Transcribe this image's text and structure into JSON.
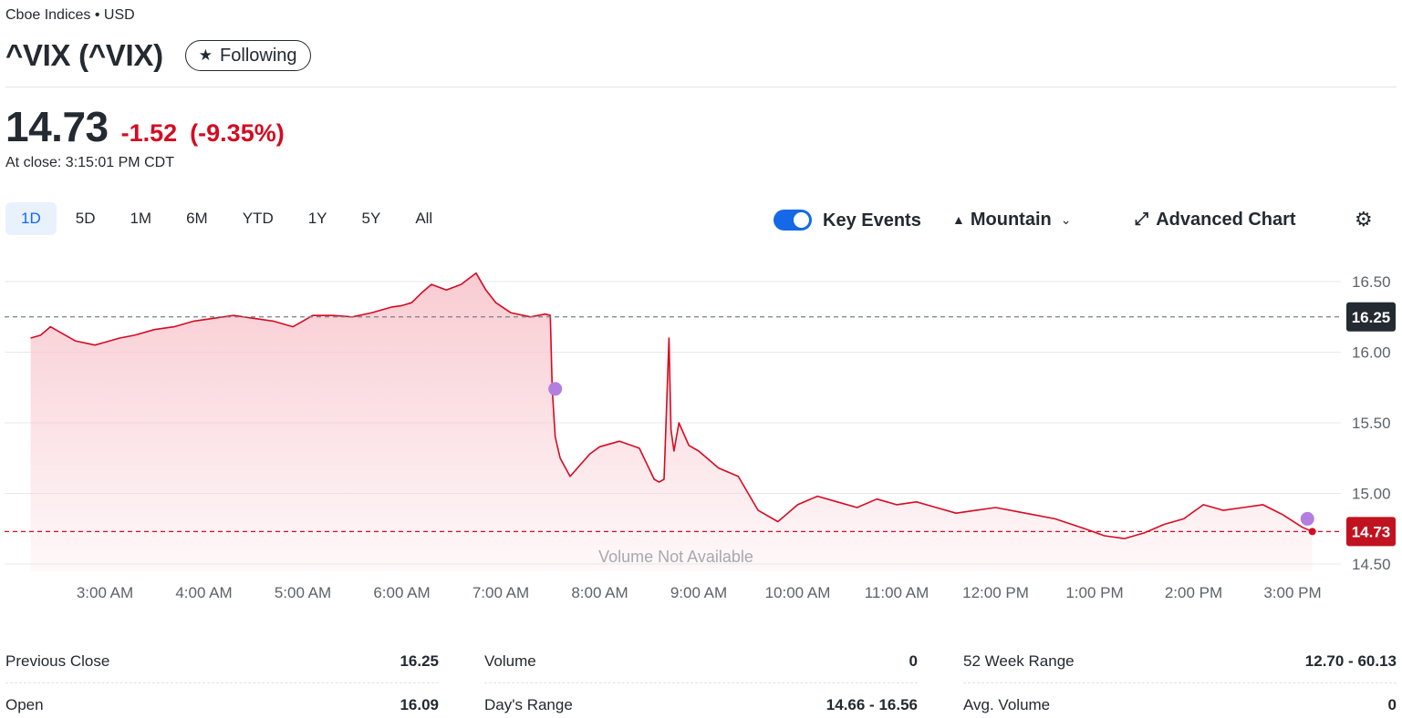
{
  "header": {
    "exchange": "Cboe Indices • USD",
    "title": "^VIX (^VIX)",
    "follow_label": "Following"
  },
  "quote": {
    "price": "14.73",
    "change": "-1.52",
    "change_pct": "(-9.35%)",
    "close_time": "At close: 3:15:01 PM CDT"
  },
  "ranges": [
    "1D",
    "5D",
    "1M",
    "6M",
    "YTD",
    "1Y",
    "5Y",
    "All"
  ],
  "active_range": "1D",
  "controls": {
    "key_events_label": "Key Events",
    "key_events_on": true,
    "chart_type_label": "Mountain",
    "advanced_label": "Advanced Chart"
  },
  "colors": {
    "line": "#d60a22",
    "fill": "#f8c9d0",
    "event": "#b37ee0",
    "prev_close_badge": "#232a31",
    "price_badge": "#c1121f"
  },
  "icons": {
    "follow": "star-icon",
    "chart_type": "mountain-icon",
    "dropdown": "chevron-down-icon",
    "advanced": "expand-arrows-icon",
    "settings": "gear-icon"
  },
  "chart_data": {
    "type": "area",
    "title": "",
    "xlabel": "",
    "ylabel": "",
    "ylim": [
      14.45,
      16.62
    ],
    "y_ticks": [
      "16.50",
      "16.00",
      "15.50",
      "15.00",
      "14.50"
    ],
    "x_ticks": [
      "3:00 AM",
      "4:00 AM",
      "5:00 AM",
      "6:00 AM",
      "7:00 AM",
      "8:00 AM",
      "9:00 AM",
      "10:00 AM",
      "11:00 AM",
      "12:00 PM",
      "1:00 PM",
      "2:00 PM",
      "3:00 PM"
    ],
    "x_range_hours": [
      2.25,
      15.25
    ],
    "previous_close": 16.25,
    "previous_close_label": "16.25",
    "last_price": 14.73,
    "last_price_label": "14.73",
    "volume_note": "Volume Not Available",
    "grid": true,
    "series": [
      {
        "x": [
          2.25,
          2.35,
          2.45,
          2.55,
          2.7,
          2.9,
          3.0,
          3.15,
          3.3,
          3.5,
          3.7,
          3.9,
          4.1,
          4.3,
          4.5,
          4.7,
          4.9,
          5.0,
          5.1,
          5.3,
          5.5,
          5.7,
          5.9,
          6.0,
          6.1,
          6.2,
          6.3,
          6.45,
          6.6,
          6.75,
          6.85,
          6.95,
          7.1,
          7.3,
          7.45,
          7.5,
          7.52,
          7.55,
          7.6,
          7.7,
          7.8,
          7.9,
          8.0,
          8.2,
          8.4,
          8.55,
          8.6,
          8.65,
          8.7,
          8.72,
          8.75,
          8.8,
          8.9,
          9.0,
          9.2,
          9.4,
          9.6,
          9.8,
          9.9,
          10.0,
          10.2,
          10.4,
          10.6,
          10.8,
          11.0,
          11.2,
          11.4,
          11.6,
          11.8,
          12.0,
          12.3,
          12.6,
          12.9,
          13.1,
          13.3,
          13.5,
          13.7,
          13.9,
          14.1,
          14.3,
          14.5,
          14.7,
          14.9,
          15.1,
          15.2
        ],
        "values": [
          16.1,
          16.12,
          16.18,
          16.14,
          16.08,
          16.05,
          16.07,
          16.1,
          16.12,
          16.16,
          16.18,
          16.22,
          16.24,
          16.26,
          16.24,
          16.22,
          16.18,
          16.22,
          16.26,
          16.26,
          16.25,
          16.28,
          16.32,
          16.33,
          16.35,
          16.42,
          16.48,
          16.44,
          16.48,
          16.56,
          16.44,
          16.35,
          16.28,
          16.25,
          16.27,
          16.26,
          15.74,
          15.4,
          15.25,
          15.12,
          15.2,
          15.28,
          15.33,
          15.37,
          15.32,
          15.1,
          15.08,
          15.1,
          16.1,
          15.45,
          15.3,
          15.5,
          15.34,
          15.3,
          15.18,
          15.12,
          14.88,
          14.8,
          14.86,
          14.92,
          14.98,
          14.94,
          14.9,
          14.96,
          14.92,
          14.94,
          14.9,
          14.86,
          14.88,
          14.9,
          14.86,
          14.82,
          14.75,
          14.7,
          14.68,
          14.72,
          14.78,
          14.82,
          14.92,
          14.88,
          14.9,
          14.92,
          14.85,
          14.76,
          14.73
        ]
      }
    ],
    "key_events": [
      {
        "x": 7.55,
        "y": 15.74
      },
      {
        "x": 15.15,
        "y": 14.82
      }
    ]
  },
  "stats": [
    [
      {
        "label": "Previous Close",
        "value": "16.25"
      },
      {
        "label": "Volume",
        "value": "0"
      },
      {
        "label": "52 Week Range",
        "value": "12.70 - 60.13"
      }
    ],
    [
      {
        "label": "Open",
        "value": "16.09"
      },
      {
        "label": "Day's Range",
        "value": "14.66 - 16.56"
      },
      {
        "label": "Avg. Volume",
        "value": "0"
      }
    ]
  ]
}
